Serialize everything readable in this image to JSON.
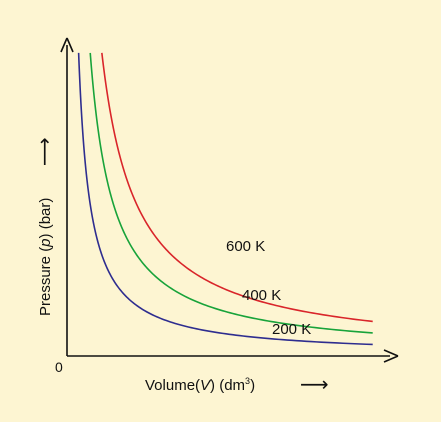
{
  "chart_data": {
    "type": "line",
    "xlabel_main": "Volume(",
    "xlabel_var": "V",
    "xlabel_unit": ") (dm",
    "xlabel_sup": "3",
    "xlabel_close": ")",
    "ylabel_main": "Pressure (",
    "ylabel_var": "p",
    "ylabel_unit": ") (bar)",
    "origin_label": "0",
    "arrow_glyph": "⟶",
    "grid": false,
    "series": [
      {
        "name": "200 K",
        "color": "#2e2d8f",
        "constant": 1.0,
        "x": [
          0.38,
          0.45,
          0.55,
          0.7,
          0.9,
          1.2,
          1.6,
          2.2,
          3.0,
          4.0,
          5.0,
          6.0,
          7.0,
          8.0,
          9.0,
          10.0
        ],
        "y": [
          2.63,
          2.22,
          1.82,
          1.43,
          1.11,
          0.83,
          0.63,
          0.45,
          0.33,
          0.25,
          0.2,
          0.17,
          0.14,
          0.13,
          0.11,
          0.1
        ]
      },
      {
        "name": "400 K",
        "color": "#18a33a",
        "constant": 2.0,
        "x": [
          0.76,
          0.85,
          1.0,
          1.2,
          1.5,
          2.0,
          2.6,
          3.4,
          4.4,
          5.5,
          6.5,
          7.5,
          8.5,
          10.0
        ],
        "y": [
          2.63,
          2.35,
          2.0,
          1.67,
          1.33,
          1.0,
          0.77,
          0.59,
          0.45,
          0.36,
          0.31,
          0.27,
          0.24,
          0.2
        ]
      },
      {
        "name": "600 K",
        "color": "#d9252a",
        "constant": 3.0,
        "x": [
          1.14,
          1.3,
          1.5,
          1.8,
          2.2,
          2.8,
          3.5,
          4.3,
          5.2,
          6.2,
          7.2,
          8.2,
          9.0,
          10.0
        ],
        "y": [
          2.63,
          2.31,
          2.0,
          1.67,
          1.36,
          1.07,
          0.86,
          0.7,
          0.58,
          0.48,
          0.42,
          0.37,
          0.33,
          0.3
        ]
      }
    ],
    "xlim": [
      0,
      10.5
    ],
    "ylim": [
      0,
      2.7
    ]
  }
}
